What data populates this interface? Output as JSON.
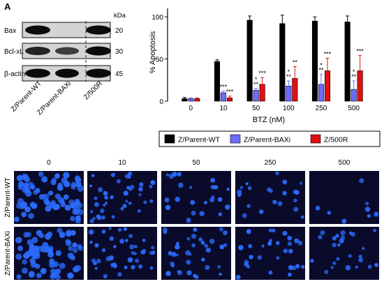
{
  "panel_label": "A",
  "blot": {
    "kda_label": "kDa",
    "rows": [
      {
        "protein": "Bax",
        "kda": "20"
      },
      {
        "protein": "Bcl-xL",
        "kda": "30"
      },
      {
        "protein": "β-actin",
        "kda": "45"
      }
    ],
    "lanes": [
      "Z/Parent-WT",
      "Z/Parent-BAXi",
      "Z/500R"
    ],
    "band_intensity": [
      [
        1.0,
        0.0,
        1.0
      ],
      [
        0.8,
        0.6,
        1.0
      ],
      [
        1.0,
        1.0,
        1.0
      ]
    ]
  },
  "chart_data": {
    "type": "bar",
    "xlabel": "BTZ (nM)",
    "ylabel": "% Apoptosis",
    "ylim": [
      0,
      110
    ],
    "yticks": [
      0,
      50,
      100
    ],
    "categories": [
      "0",
      "10",
      "50",
      "100",
      "250",
      "500"
    ],
    "series": [
      {
        "name": "Z/Parent-WT",
        "color": "#000000",
        "values": [
          3,
          47,
          96,
          92,
          95,
          94
        ],
        "errors": [
          1.5,
          2,
          5,
          10,
          5,
          7
        ]
      },
      {
        "name": "Z/Parent-BAXi",
        "color": "#6b6bff",
        "values": [
          3,
          10,
          13,
          18,
          20,
          14
        ],
        "errors": [
          1,
          2,
          2,
          6,
          12,
          10
        ]
      },
      {
        "name": "Z/500R",
        "color": "#e01010",
        "values": [
          3,
          4,
          20,
          27,
          36,
          36
        ],
        "errors": [
          1,
          2,
          8,
          14,
          15,
          18
        ]
      }
    ],
    "annotations": [
      {
        "category": 1,
        "series": 1,
        "text": "***"
      },
      {
        "category": 1,
        "series": 2,
        "text": "***"
      },
      {
        "category": 2,
        "series": 1,
        "text": "* **"
      },
      {
        "category": 2,
        "series": 2,
        "text": "***"
      },
      {
        "category": 3,
        "series": 1,
        "text": "* **"
      },
      {
        "category": 3,
        "series": 2,
        "text": "**"
      },
      {
        "category": 4,
        "series": 1,
        "text": "* **"
      },
      {
        "category": 4,
        "series": 2,
        "text": "***"
      },
      {
        "category": 5,
        "series": 1,
        "text": "* **"
      },
      {
        "category": 5,
        "series": 2,
        "text": "***"
      }
    ],
    "legend": [
      "Z/Parent-WT",
      "Z/Parent-BAXi",
      "Z/500R"
    ],
    "legend_position": "below",
    "grid": false
  },
  "micrographs": {
    "columns": [
      "0",
      "10",
      "50",
      "250",
      "500"
    ],
    "rows": [
      "Z/Parent-WT",
      "Z/Parent-BAXi"
    ],
    "cell_density": [
      [
        1.0,
        0.55,
        0.35,
        0.3,
        0.12
      ],
      [
        1.0,
        0.6,
        0.5,
        0.45,
        0.35
      ]
    ],
    "background_color": "#0a0a2a",
    "stain_color": "#2a6cff"
  }
}
